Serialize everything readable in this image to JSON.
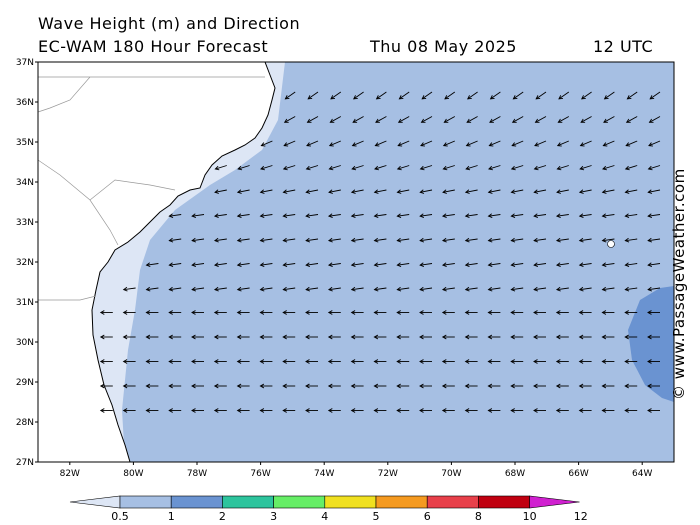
{
  "header": {
    "title": "Wave Height (m) and Direction",
    "model": "EC-WAM 180 Hour Forecast",
    "date": "Thu 08 May 2025",
    "time": "12 UTC"
  },
  "credit": {
    "symbol": "©",
    "text": "www.PassageWeather.com"
  },
  "map": {
    "lat_labels": [
      "37N",
      "36N",
      "35N",
      "34N",
      "33N",
      "32N",
      "31N",
      "30N",
      "29N",
      "28N",
      "27N"
    ],
    "lon_labels": [
      "82W",
      "80W",
      "78W",
      "76W",
      "74W",
      "72W",
      "70W",
      "68W",
      "66W",
      "64W"
    ],
    "lat_range": [
      27,
      37
    ],
    "lon_range": [
      -83,
      -63
    ],
    "arrow_direction": "westward",
    "colors": {
      "ocean": "#a6bfe3",
      "nearshore": "#dde6f5",
      "land": "#ffffff",
      "high_band": "#6a93d1"
    }
  },
  "colorbar": {
    "labels": [
      "0.5",
      "1",
      "2",
      "3",
      "4",
      "5",
      "6",
      "8",
      "10",
      "12"
    ],
    "colors": [
      "#dde6f5",
      "#a6bfe3",
      "#6a93d1",
      "#2dc49d",
      "#66ee66",
      "#f0e020",
      "#f59a20",
      "#e8404a",
      "#c00010",
      "#d020d0"
    ]
  }
}
